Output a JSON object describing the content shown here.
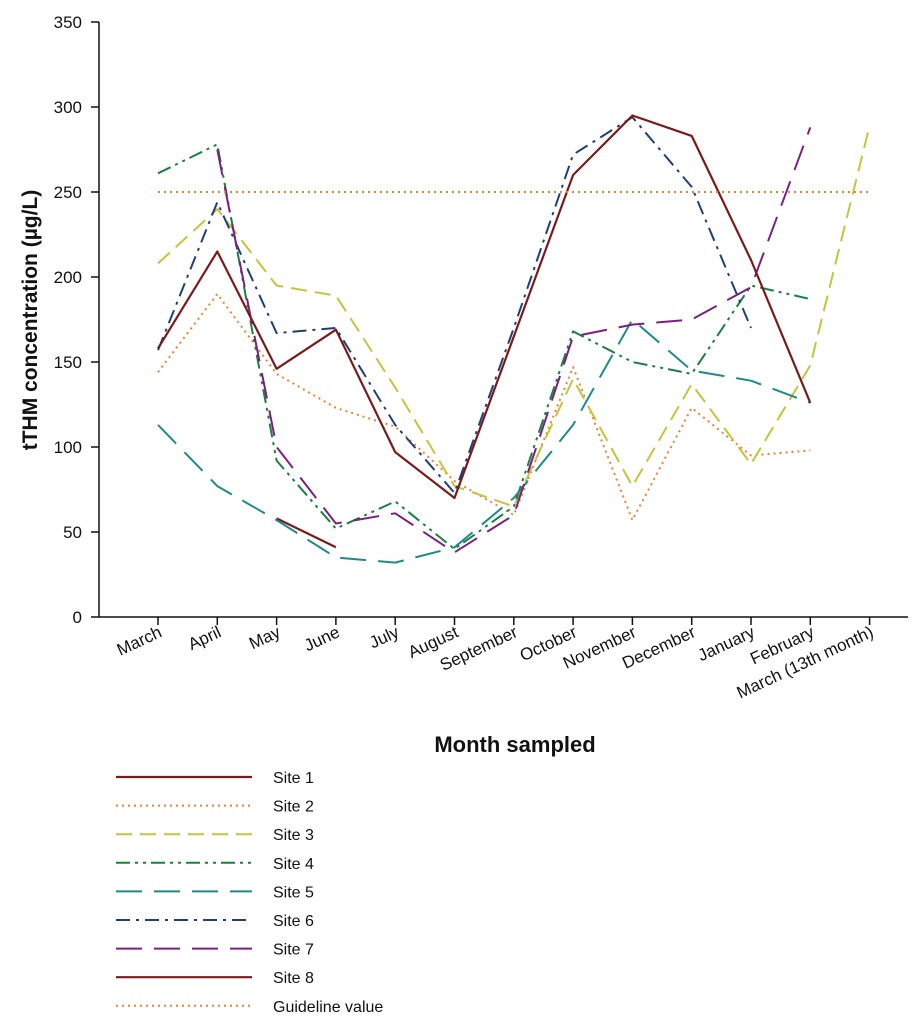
{
  "chart_data": {
    "type": "line",
    "title": "",
    "xlabel": "Month sampled",
    "ylabel": "tTHM concentration (µg/L)",
    "ylim": [
      0,
      350
    ],
    "yticks": [
      0,
      50,
      100,
      150,
      200,
      250,
      300,
      350
    ],
    "categories": [
      "March",
      "April",
      "May",
      "June",
      "July",
      "August",
      "September",
      "October",
      "November",
      "December",
      "January",
      "February",
      "March (13th month)"
    ],
    "grid": false,
    "legend_position": "bottom-left",
    "series": [
      {
        "name": "Site 1",
        "color": "#7b1a1a",
        "dash": "solid",
        "values": [
          null,
          null,
          58,
          41,
          null,
          null,
          null,
          null,
          null,
          null,
          null,
          null,
          null
        ]
      },
      {
        "name": "Site 2",
        "color": "#f07f2a",
        "dash": "dotted",
        "values": [
          144,
          190,
          143,
          123,
          112,
          80,
          60,
          147,
          57,
          123,
          95,
          98,
          null
        ]
      },
      {
        "name": "Site 3",
        "color": "#c5c43a",
        "dash": "dashed",
        "values": [
          208,
          240,
          195,
          189,
          135,
          77,
          65,
          140,
          77,
          137,
          90,
          148,
          289
        ]
      },
      {
        "name": "Site 4",
        "color": "#198040",
        "dash": "dashdotdot",
        "values": [
          261,
          278,
          92,
          52,
          68,
          40,
          65,
          168,
          150,
          143,
          195,
          187,
          null
        ]
      },
      {
        "name": "Site 5",
        "color": "#1f8a8a",
        "dash": "longdash",
        "values": [
          113,
          77,
          57,
          35,
          32,
          41,
          70,
          113,
          175,
          145,
          139,
          126,
          null
        ]
      },
      {
        "name": "Site 6",
        "color": "#1f3f7a",
        "dash": "dashdot",
        "values": [
          157,
          244,
          167,
          170,
          113,
          73,
          170,
          272,
          294,
          253,
          170,
          null,
          null
        ]
      },
      {
        "name": "Site 7",
        "color": "#7a2080",
        "dash": "longdash",
        "values": [
          null,
          275,
          100,
          55,
          61,
          38,
          60,
          165,
          172,
          175,
          194,
          288,
          null
        ]
      },
      {
        "name": "Site 8",
        "color": "#7b1a1a",
        "dash": "solid",
        "values": [
          158,
          215,
          146,
          169,
          97,
          70,
          165,
          260,
          295,
          283,
          210,
          126,
          null
        ]
      },
      {
        "name": "Guideline value",
        "color": "#f07f2a",
        "dash": "dotted",
        "values": [
          250,
          250,
          250,
          250,
          250,
          250,
          250,
          250,
          250,
          250,
          250,
          250,
          250
        ]
      }
    ]
  }
}
